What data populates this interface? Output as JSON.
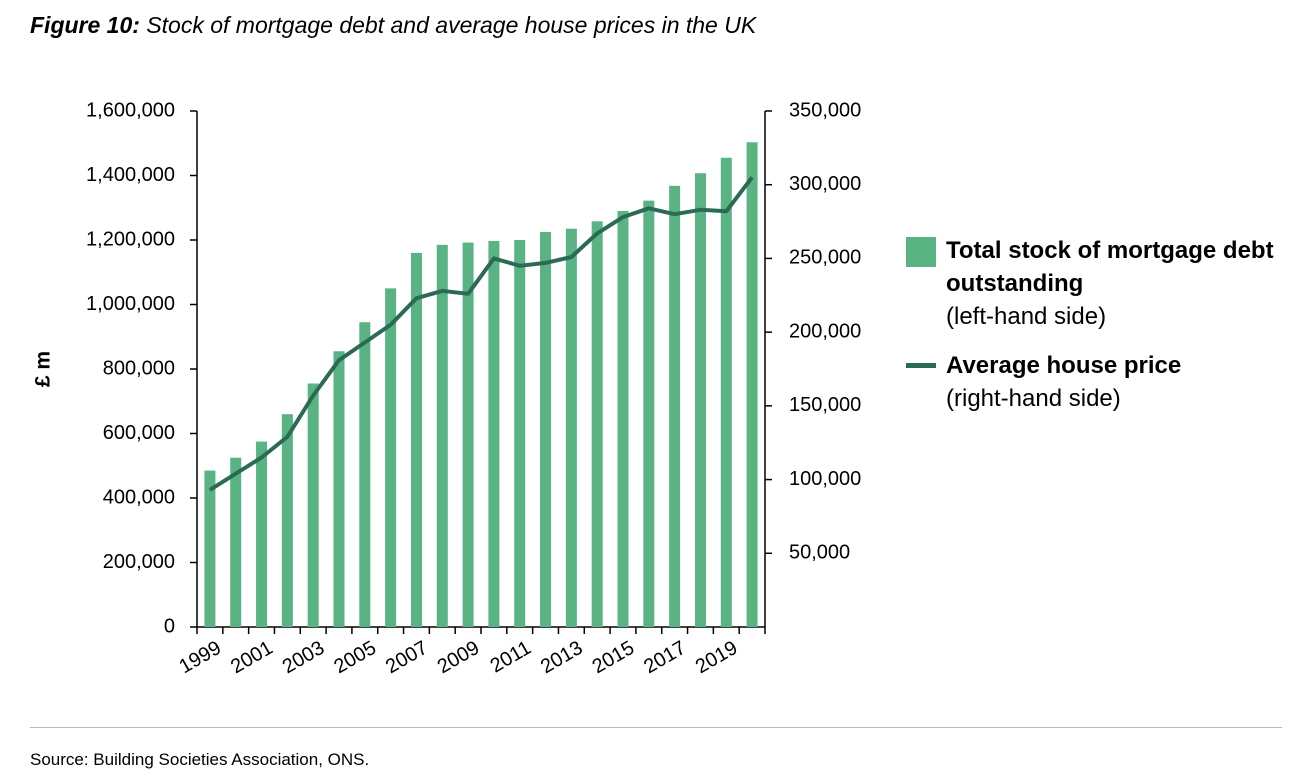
{
  "chart_data": {
    "type": "bar",
    "figure_label": "Figure 10:",
    "title": "Stock of mortgage debt and average house prices in the UK",
    "y_label": "£ m",
    "source": "Source: Building Societies Association, ONS.",
    "categories": [
      "1999",
      null,
      "2001",
      null,
      "2003",
      null,
      "2005",
      null,
      "2007",
      null,
      "2009",
      null,
      "2011",
      null,
      "2013",
      null,
      "2015",
      null,
      "2017",
      null,
      "2019",
      null
    ],
    "series": [
      {
        "name": "Total stock of mortgage debt outstanding",
        "note": "(left-hand side)",
        "type": "bar",
        "axis": "y",
        "color": "#5ab383",
        "values": [
          485000,
          525000,
          575000,
          660000,
          755000,
          855000,
          945000,
          1050000,
          1160000,
          1185000,
          1192000,
          1197000,
          1200000,
          1225000,
          1235000,
          1258000,
          1290000,
          1322000,
          1368000,
          1407000,
          1455000,
          1503000
        ]
      },
      {
        "name": "Average house price",
        "note": "(right-hand side)",
        "type": "line",
        "axis": "y2",
        "color": "#2b6b56",
        "values": [
          93000,
          104000,
          115000,
          129000,
          157000,
          181000,
          193000,
          205000,
          223000,
          228000,
          226000,
          250000,
          245000,
          247000,
          251000,
          267000,
          278000,
          284000,
          280000,
          283000,
          282000,
          305000
        ]
      }
    ],
    "ylim": [
      0,
      1600000
    ],
    "yticks": [
      0,
      {
        "value": 200000,
        "label": "200,000"
      },
      {
        "value": 400000,
        "label": "400,000"
      },
      {
        "value": 600000,
        "label": "600,000"
      },
      {
        "value": 800000,
        "label": "800,000"
      },
      {
        "value": 1000000,
        "label": "1,000,000"
      },
      {
        "value": 1200000,
        "label": "1,200,000"
      },
      {
        "value": 1400000,
        "label": "1,400,000"
      },
      {
        "value": 1600000,
        "label": "1,600,000"
      }
    ],
    "y2lim": [
      0,
      350000
    ],
    "y2ticks": [
      {
        "value": 50000,
        "label": "50,000"
      },
      {
        "value": 100000,
        "label": "100,000"
      },
      {
        "value": 150000,
        "label": "150,000"
      },
      {
        "value": 200000,
        "label": "200,000"
      },
      {
        "value": 250000,
        "label": "250,000"
      },
      {
        "value": 300000,
        "label": "300,000"
      },
      {
        "value": 350000,
        "label": "350,000"
      }
    ],
    "grid": false,
    "legend": "right"
  }
}
